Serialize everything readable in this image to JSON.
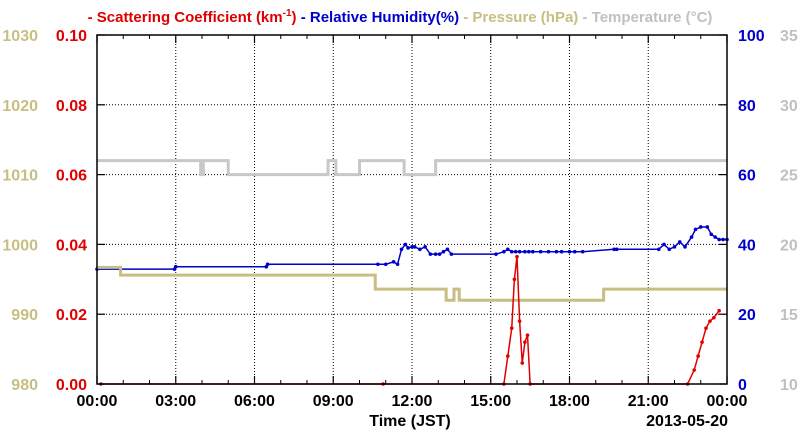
{
  "chart_data": {
    "type": "line",
    "title_parts": [
      {
        "dash": "-",
        "text": "Scattering Coefficient (km",
        "sup": "-1",
        "close": ")",
        "color": "#e00000"
      },
      {
        "dash": "-",
        "text": "Relative Humidity(%)",
        "color": "#0000cc"
      },
      {
        "dash": "-",
        "text": "Pressure (hPa)",
        "color": "#c8be82"
      },
      {
        "dash": "-",
        "text": "Temperature (°C)",
        "color": "#c0c0c0"
      }
    ],
    "xlabel": "Time (JST)",
    "date_label": "2013-05-20",
    "xlim": [
      0,
      24
    ],
    "x_ticks": [
      0,
      3,
      6,
      9,
      12,
      15,
      18,
      21,
      24
    ],
    "x_tick_labels": [
      "00:00",
      "03:00",
      "06:00",
      "09:00",
      "12:00",
      "15:00",
      "18:00",
      "21:00",
      "00:00"
    ],
    "grid": true,
    "axes": {
      "pressure": {
        "range": [
          980,
          1030
        ],
        "ticks": [
          "980",
          "990",
          "1000",
          "1010",
          "1020",
          "1030"
        ],
        "color": "#c8be82",
        "side": "left-outer"
      },
      "scattering": {
        "range": [
          0,
          0.1
        ],
        "ticks": [
          "0.00",
          "0.02",
          "0.04",
          "0.06",
          "0.08",
          "0.10"
        ],
        "color": "#e00000",
        "side": "left-inner"
      },
      "humidity": {
        "range": [
          0,
          100
        ],
        "ticks": [
          "0",
          "20",
          "40",
          "60",
          "80",
          "100"
        ],
        "color": "#0000cc",
        "side": "right-inner"
      },
      "temperature": {
        "range": [
          10,
          35
        ],
        "ticks": [
          "10",
          "15",
          "20",
          "25",
          "30",
          "35"
        ],
        "color": "#c0c0c0",
        "side": "right-outer"
      }
    },
    "series": [
      {
        "name": "Temperature (°C)",
        "axis": "temperature",
        "color": "#c8c8c8",
        "step": true,
        "x": [
          0,
          3.9,
          3.95,
          4.05,
          5.0,
          8.7,
          8.8,
          9.1,
          10.0,
          11.7,
          12.0,
          12.9,
          23.0
        ],
        "y": [
          26.0,
          26.0,
          25.0,
          26.0,
          25.0,
          25.0,
          26.0,
          25.0,
          26.0,
          25.0,
          25.0,
          26.0,
          26.0
        ]
      },
      {
        "name": "Relative Humidity(%)",
        "axis": "humidity",
        "color": "#0000cc",
        "x": [
          0,
          2.95,
          3.0,
          6.45,
          6.5,
          10.7,
          11.0,
          11.3,
          11.45,
          11.6,
          11.75,
          11.85,
          12.0,
          12.1,
          12.3,
          12.5,
          12.7,
          12.9,
          13.05,
          13.2,
          13.35,
          13.5,
          15.2,
          15.5,
          15.65,
          15.8,
          15.95,
          16.1,
          16.3,
          16.45,
          16.6,
          16.9,
          17.2,
          17.5,
          17.7,
          18.0,
          18.2,
          18.5,
          19.7,
          19.8,
          21.4,
          21.6,
          21.8,
          22.0,
          22.2,
          22.4,
          22.65,
          22.8,
          23.0,
          23.25,
          23.4,
          23.55,
          23.7,
          23.85,
          24.0
        ],
        "y": [
          32.9,
          32.9,
          33.6,
          33.6,
          34.3,
          34.3,
          34.3,
          35.0,
          34.3,
          38.6,
          40.0,
          39.0,
          39.3,
          39.3,
          38.6,
          39.3,
          37.2,
          37.2,
          37.2,
          37.9,
          38.6,
          37.2,
          37.2,
          37.9,
          38.6,
          37.9,
          37.9,
          37.9,
          37.9,
          37.9,
          37.9,
          37.9,
          37.9,
          37.9,
          37.9,
          37.9,
          37.9,
          37.9,
          38.6,
          38.6,
          38.6,
          40.0,
          38.6,
          39.3,
          40.7,
          39.3,
          42.1,
          44.3,
          45.0,
          45.0,
          42.9,
          42.1,
          41.4,
          41.4,
          41.4
        ],
        "markers": true
      },
      {
        "name": "Pressure (hPa)",
        "axis": "pressure",
        "color": "#c8be82",
        "step": true,
        "x": [
          0,
          0.9,
          10.6,
          13.2,
          13.3,
          13.6,
          13.8,
          19.3,
          24.0
        ],
        "y": [
          996.7,
          995.6,
          993.6,
          993.6,
          992.0,
          993.6,
          992.0,
          993.6,
          993.6
        ]
      },
      {
        "name": "Scattering Coefficient (km-1)",
        "axis": "scattering",
        "color": "#e00000",
        "x": [
          0.15,
          10.9,
          15.5,
          15.65,
          15.8,
          15.9,
          16.0,
          16.1,
          16.2,
          16.3,
          16.4,
          16.5,
          22.5,
          22.75,
          22.9,
          23.05,
          23.2,
          23.35,
          23.5,
          23.7
        ],
        "y": [
          0.0,
          0.0,
          0.0,
          0.008,
          0.016,
          0.03,
          0.0365,
          0.018,
          0.006,
          0.012,
          0.014,
          0.0,
          0.0,
          0.004,
          0.008,
          0.012,
          0.016,
          0.018,
          0.019,
          0.021
        ],
        "markers": true
      }
    ]
  }
}
